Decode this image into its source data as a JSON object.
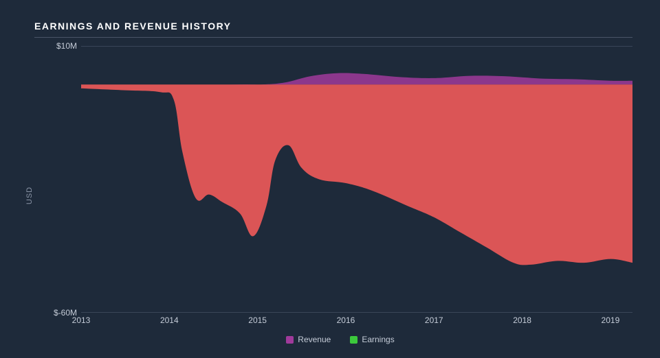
{
  "chart": {
    "type": "area",
    "title": "EARNINGS AND REVENUE HISTORY",
    "background_color": "#1e2a3a",
    "grid_color": "#3a4658",
    "text_color": "#c5ccd8",
    "title_color": "#ffffff",
    "title_fontsize": 14,
    "title_fontweight": 700,
    "title_letterspacing": 1.5,
    "y_axis": {
      "title": "USD",
      "min": -60,
      "max": 10,
      "ticks": [
        {
          "value": 10,
          "label": "$10M"
        },
        {
          "value": -60,
          "label": "$-60M"
        }
      ],
      "label_fontsize": 12,
      "title_fontsize": 11
    },
    "x_axis": {
      "min": 2013,
      "max": 2019.25,
      "ticks": [
        {
          "value": 2013,
          "label": "2013"
        },
        {
          "value": 2014,
          "label": "2014"
        },
        {
          "value": 2015,
          "label": "2015"
        },
        {
          "value": 2016,
          "label": "2016"
        },
        {
          "value": 2017,
          "label": "2017"
        },
        {
          "value": 2018,
          "label": "2018"
        },
        {
          "value": 2019,
          "label": "2019"
        }
      ],
      "label_fontsize": 12
    },
    "series": [
      {
        "name": "Revenue",
        "color": "#a03a9b",
        "fill_opacity": 0.85,
        "baseline": 0,
        "points": [
          {
            "x": 2013.0,
            "y": 0.0
          },
          {
            "x": 2013.5,
            "y": 0.0
          },
          {
            "x": 2014.0,
            "y": 0.0
          },
          {
            "x": 2014.5,
            "y": 0.0
          },
          {
            "x": 2015.0,
            "y": 0.0
          },
          {
            "x": 2015.3,
            "y": 0.5
          },
          {
            "x": 2015.6,
            "y": 2.2
          },
          {
            "x": 2015.9,
            "y": 3.0
          },
          {
            "x": 2016.2,
            "y": 2.8
          },
          {
            "x": 2016.6,
            "y": 2.0
          },
          {
            "x": 2017.0,
            "y": 1.7
          },
          {
            "x": 2017.4,
            "y": 2.3
          },
          {
            "x": 2017.8,
            "y": 2.2
          },
          {
            "x": 2018.2,
            "y": 1.6
          },
          {
            "x": 2018.6,
            "y": 1.4
          },
          {
            "x": 2019.0,
            "y": 1.0
          },
          {
            "x": 2019.25,
            "y": 1.0
          }
        ]
      },
      {
        "name": "Earnings",
        "color": "#ef5a5a",
        "fill_opacity": 0.9,
        "baseline": 0,
        "points": [
          {
            "x": 2013.0,
            "y": -1.0
          },
          {
            "x": 2013.5,
            "y": -1.5
          },
          {
            "x": 2013.9,
            "y": -2.0
          },
          {
            "x": 2014.05,
            "y": -4.0
          },
          {
            "x": 2014.15,
            "y": -18.0
          },
          {
            "x": 2014.3,
            "y": -30.0
          },
          {
            "x": 2014.45,
            "y": -29.0
          },
          {
            "x": 2014.6,
            "y": -31.0
          },
          {
            "x": 2014.8,
            "y": -34.0
          },
          {
            "x": 2014.95,
            "y": -40.0
          },
          {
            "x": 2015.1,
            "y": -32.0
          },
          {
            "x": 2015.2,
            "y": -20.0
          },
          {
            "x": 2015.35,
            "y": -16.0
          },
          {
            "x": 2015.5,
            "y": -22.0
          },
          {
            "x": 2015.7,
            "y": -25.0
          },
          {
            "x": 2016.0,
            "y": -26.0
          },
          {
            "x": 2016.3,
            "y": -28.0
          },
          {
            "x": 2016.7,
            "y": -32.0
          },
          {
            "x": 2017.0,
            "y": -35.0
          },
          {
            "x": 2017.3,
            "y": -39.0
          },
          {
            "x": 2017.6,
            "y": -43.0
          },
          {
            "x": 2017.9,
            "y": -47.0
          },
          {
            "x": 2018.1,
            "y": -47.5
          },
          {
            "x": 2018.4,
            "y": -46.5
          },
          {
            "x": 2018.7,
            "y": -47.0
          },
          {
            "x": 2019.0,
            "y": -46.0
          },
          {
            "x": 2019.25,
            "y": -47.0
          }
        ]
      }
    ],
    "legend": {
      "items": [
        {
          "label": "Revenue",
          "color": "#a03a9b"
        },
        {
          "label": "Earnings",
          "color": "#3cc93c"
        }
      ],
      "fontsize": 12,
      "swatch_size": 11
    }
  }
}
